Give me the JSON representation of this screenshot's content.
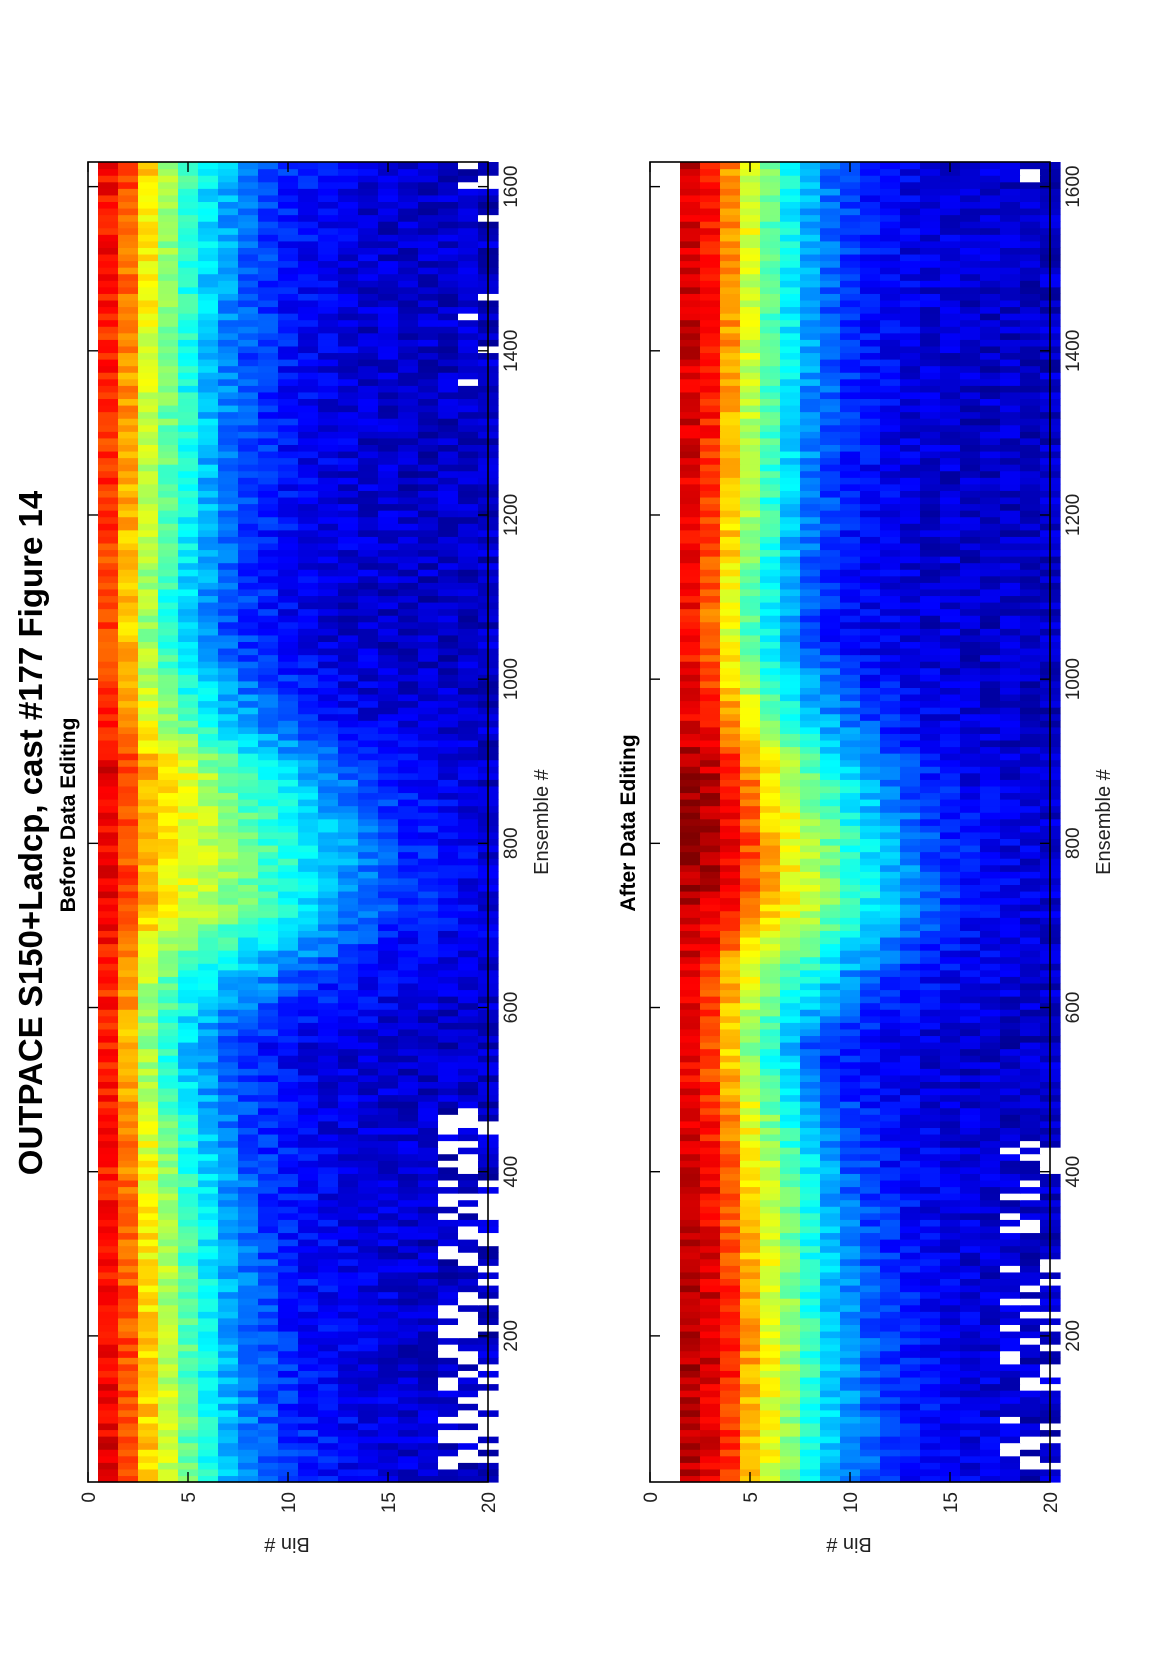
{
  "figure": {
    "title": "OUTPACE S150+Ladcp, cast #177  Figure 14"
  },
  "chart_data": [
    {
      "type": "heatmap",
      "title": "Before Data Editing",
      "xlabel": "Ensemble #",
      "ylabel": "Bin #",
      "xlim": [
        22,
        1630
      ],
      "ylim": [
        0,
        20
      ],
      "xticks": [
        200,
        400,
        600,
        800,
        1000,
        1200,
        1400,
        1600
      ],
      "yticks": [
        0,
        5,
        10,
        15,
        20
      ],
      "xtick_labels": [
        "200",
        "400",
        "600",
        "800",
        "1000",
        "1200",
        "1400",
        "1600"
      ],
      "ytick_labels": [
        "0",
        "5",
        "10",
        "15",
        "20"
      ],
      "colormap": "jet",
      "first_bin": 1,
      "profile_ensembles": [
        30,
        200,
        400,
        550,
        640,
        720,
        800,
        880,
        950,
        1050,
        1200,
        1400,
        1620
      ],
      "value_profiles": [
        [
          0.9,
          0.82,
          0.68,
          0.58,
          0.48,
          0.4,
          0.32,
          0.26,
          0.22,
          0.18,
          0.16,
          0.14,
          0.12,
          0.1,
          0.09,
          0.08,
          0.08,
          0.07,
          0.07,
          0.07
        ],
        [
          0.88,
          0.8,
          0.66,
          0.56,
          0.46,
          0.38,
          0.3,
          0.24,
          0.2,
          0.16,
          0.14,
          0.12,
          0.11,
          0.1,
          0.09,
          0.08,
          0.08,
          0.07,
          0.07,
          0.07
        ],
        [
          0.86,
          0.76,
          0.62,
          0.52,
          0.42,
          0.34,
          0.28,
          0.22,
          0.18,
          0.15,
          0.13,
          0.11,
          0.1,
          0.09,
          0.08,
          0.08,
          0.07,
          0.07,
          0.07,
          0.07
        ],
        [
          0.84,
          0.7,
          0.52,
          0.4,
          0.32,
          0.25,
          0.2,
          0.16,
          0.14,
          0.12,
          0.1,
          0.09,
          0.09,
          0.08,
          0.08,
          0.07,
          0.07,
          0.07,
          0.07,
          0.07
        ],
        [
          0.85,
          0.73,
          0.56,
          0.48,
          0.42,
          0.38,
          0.34,
          0.3,
          0.27,
          0.24,
          0.21,
          0.18,
          0.16,
          0.14,
          0.12,
          0.11,
          0.1,
          0.09,
          0.08,
          0.08
        ],
        [
          0.88,
          0.8,
          0.7,
          0.64,
          0.6,
          0.56,
          0.52,
          0.48,
          0.44,
          0.4,
          0.36,
          0.32,
          0.28,
          0.24,
          0.2,
          0.17,
          0.15,
          0.13,
          0.11,
          0.1
        ],
        [
          0.88,
          0.8,
          0.7,
          0.64,
          0.6,
          0.56,
          0.52,
          0.48,
          0.44,
          0.4,
          0.36,
          0.32,
          0.28,
          0.24,
          0.2,
          0.17,
          0.15,
          0.13,
          0.11,
          0.1
        ],
        [
          0.9,
          0.82,
          0.72,
          0.66,
          0.6,
          0.54,
          0.48,
          0.42,
          0.38,
          0.34,
          0.3,
          0.26,
          0.22,
          0.19,
          0.16,
          0.14,
          0.12,
          0.1,
          0.09,
          0.08
        ],
        [
          0.84,
          0.74,
          0.6,
          0.52,
          0.44,
          0.38,
          0.33,
          0.28,
          0.24,
          0.2,
          0.17,
          0.14,
          0.12,
          0.1,
          0.09,
          0.08,
          0.08,
          0.07,
          0.07,
          0.07
        ],
        [
          0.8,
          0.68,
          0.52,
          0.4,
          0.32,
          0.26,
          0.2,
          0.17,
          0.14,
          0.12,
          0.1,
          0.09,
          0.08,
          0.08,
          0.07,
          0.07,
          0.07,
          0.07,
          0.07,
          0.07
        ],
        [
          0.82,
          0.7,
          0.56,
          0.46,
          0.38,
          0.3,
          0.24,
          0.19,
          0.16,
          0.13,
          0.11,
          0.1,
          0.09,
          0.08,
          0.08,
          0.07,
          0.07,
          0.07,
          0.07,
          0.07
        ],
        [
          0.84,
          0.74,
          0.6,
          0.5,
          0.4,
          0.32,
          0.26,
          0.2,
          0.17,
          0.14,
          0.12,
          0.1,
          0.09,
          0.08,
          0.08,
          0.07,
          0.07,
          0.07,
          0.07,
          0.07
        ],
        [
          0.88,
          0.8,
          0.66,
          0.54,
          0.44,
          0.36,
          0.3,
          0.24,
          0.2,
          0.16,
          0.14,
          0.12,
          0.1,
          0.09,
          0.08,
          0.08,
          0.07,
          0.07,
          0.07,
          0.07
        ]
      ],
      "gaps": [
        {
          "from": 30,
          "to": 470,
          "bin_min": 18,
          "density": 0.45
        },
        {
          "from": 1350,
          "to": 1625,
          "bin_min": 19,
          "density": 0.15
        }
      ],
      "noise_amplitude": 0.05,
      "random_seed": 11
    },
    {
      "type": "heatmap",
      "title": "After Data Editing",
      "xlabel": "Ensemble #",
      "ylabel": "Bin #",
      "xlim": [
        22,
        1630
      ],
      "ylim": [
        0,
        20
      ],
      "xticks": [
        200,
        400,
        600,
        800,
        1000,
        1200,
        1400,
        1600
      ],
      "yticks": [
        0,
        5,
        10,
        15,
        20
      ],
      "xtick_labels": [
        "200",
        "400",
        "600",
        "800",
        "1000",
        "1200",
        "1400",
        "1600"
      ],
      "ytick_labels": [
        "0",
        "5",
        "10",
        "15",
        "20"
      ],
      "colormap": "jet",
      "first_bin": 2,
      "profile_ensembles": [
        30,
        200,
        400,
        550,
        640,
        720,
        800,
        880,
        950,
        1050,
        1200,
        1400,
        1620
      ],
      "value_profiles": [
        [
          0.94,
          0.9,
          0.82,
          0.7,
          0.6,
          0.5,
          0.4,
          0.32,
          0.26,
          0.22,
          0.18,
          0.15,
          0.13,
          0.11,
          0.1,
          0.09,
          0.08,
          0.07,
          0.07
        ],
        [
          0.95,
          0.92,
          0.84,
          0.72,
          0.62,
          0.52,
          0.42,
          0.34,
          0.28,
          0.22,
          0.18,
          0.15,
          0.13,
          0.11,
          0.1,
          0.09,
          0.08,
          0.07,
          0.07
        ],
        [
          0.92,
          0.88,
          0.78,
          0.66,
          0.56,
          0.46,
          0.36,
          0.28,
          0.22,
          0.18,
          0.15,
          0.13,
          0.11,
          0.1,
          0.09,
          0.08,
          0.08,
          0.07,
          0.07
        ],
        [
          0.88,
          0.8,
          0.66,
          0.52,
          0.4,
          0.3,
          0.22,
          0.17,
          0.14,
          0.12,
          0.1,
          0.09,
          0.08,
          0.08,
          0.07,
          0.07,
          0.07,
          0.07,
          0.07
        ],
        [
          0.9,
          0.82,
          0.7,
          0.6,
          0.52,
          0.46,
          0.4,
          0.34,
          0.28,
          0.24,
          0.2,
          0.17,
          0.14,
          0.12,
          0.11,
          0.1,
          0.09,
          0.08,
          0.08
        ],
        [
          0.95,
          0.92,
          0.86,
          0.76,
          0.68,
          0.62,
          0.56,
          0.5,
          0.44,
          0.38,
          0.32,
          0.27,
          0.22,
          0.18,
          0.15,
          0.13,
          0.11,
          0.1,
          0.09
        ],
        [
          0.98,
          0.96,
          0.9,
          0.8,
          0.7,
          0.62,
          0.55,
          0.48,
          0.42,
          0.36,
          0.3,
          0.25,
          0.2,
          0.17,
          0.14,
          0.12,
          0.1,
          0.09,
          0.08
        ],
        [
          0.97,
          0.94,
          0.86,
          0.74,
          0.64,
          0.56,
          0.48,
          0.4,
          0.34,
          0.28,
          0.23,
          0.19,
          0.16,
          0.13,
          0.11,
          0.1,
          0.09,
          0.08,
          0.07
        ],
        [
          0.9,
          0.84,
          0.72,
          0.6,
          0.5,
          0.42,
          0.34,
          0.28,
          0.23,
          0.19,
          0.16,
          0.13,
          0.11,
          0.1,
          0.09,
          0.08,
          0.07,
          0.07,
          0.07
        ],
        [
          0.86,
          0.76,
          0.6,
          0.46,
          0.36,
          0.27,
          0.2,
          0.16,
          0.13,
          0.11,
          0.1,
          0.09,
          0.08,
          0.08,
          0.07,
          0.07,
          0.07,
          0.07,
          0.07
        ],
        [
          0.9,
          0.82,
          0.68,
          0.54,
          0.42,
          0.32,
          0.24,
          0.19,
          0.15,
          0.12,
          0.11,
          0.09,
          0.08,
          0.08,
          0.07,
          0.07,
          0.07,
          0.07,
          0.07
        ],
        [
          0.92,
          0.86,
          0.72,
          0.58,
          0.46,
          0.36,
          0.28,
          0.22,
          0.17,
          0.14,
          0.12,
          0.1,
          0.09,
          0.08,
          0.08,
          0.07,
          0.07,
          0.07,
          0.07
        ],
        [
          0.92,
          0.86,
          0.74,
          0.6,
          0.48,
          0.38,
          0.3,
          0.24,
          0.19,
          0.15,
          0.13,
          0.11,
          0.1,
          0.09,
          0.08,
          0.08,
          0.07,
          0.07,
          0.07
        ]
      ],
      "gaps": [
        {
          "from": 30,
          "to": 430,
          "bin_min": 18,
          "density": 0.3
        },
        {
          "from": 1500,
          "to": 1625,
          "bin_min": 19,
          "density": 0.08
        }
      ],
      "noise_amplitude": 0.05,
      "random_seed": 29
    }
  ]
}
